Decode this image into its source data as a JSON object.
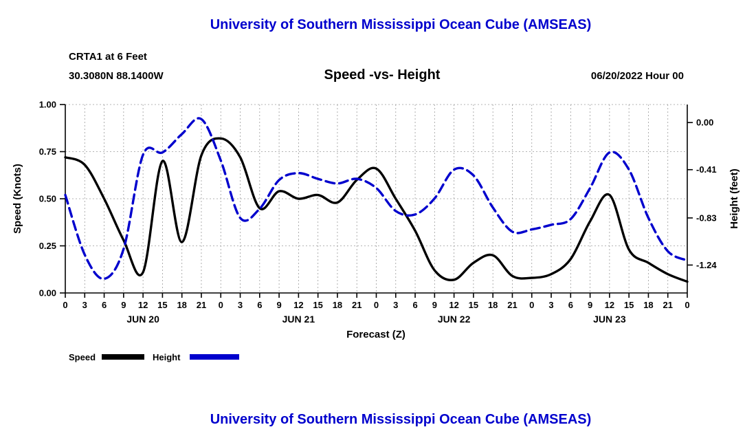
{
  "colors": {
    "accent_blue": "#0000CD",
    "line_black": "#000000",
    "grid_gray": "#9a9a9a"
  },
  "chart_data": {
    "type": "line",
    "title": "University of Southern Mississippi Ocean Cube (AMSEAS)",
    "station": "CRTA1 at 6 Feet",
    "coords": "30.3080N  88.1400W",
    "subtitle": "Speed -vs- Height",
    "run_label": "06/20/2022 Hour 00",
    "xlabel": "Forecast (Z)",
    "ylabel_left": "Speed (Knots)",
    "ylabel_right": "Height (feet)",
    "x_unit": "hours",
    "x_min": 0,
    "x_max": 96,
    "x_tick_step": 3,
    "x_tick_label_mod": 24,
    "x": [
      0,
      3,
      6,
      9,
      12,
      15,
      18,
      21,
      24,
      27,
      30,
      33,
      36,
      39,
      42,
      45,
      48,
      51,
      54,
      57,
      60,
      63,
      66,
      69,
      72,
      75,
      78,
      81,
      84,
      87,
      90,
      93,
      96
    ],
    "day_labels": [
      "JUN 20",
      "JUN 21",
      "JUN 22",
      "JUN 23"
    ],
    "left_axis": {
      "min": 0,
      "max": 1,
      "ticks": [
        {
          "label": "0.00",
          "value": 0.0
        },
        {
          "label": "0.25",
          "value": 0.25
        },
        {
          "label": "0.50",
          "value": 0.5
        },
        {
          "label": "0.75",
          "value": 0.75
        },
        {
          "label": "1.00",
          "value": 1.0
        }
      ]
    },
    "right_axis": {
      "min": -1.483,
      "max": 0.157,
      "ticks": [
        {
          "label": "0.00",
          "value": 0.0
        },
        {
          "label": "-0.41",
          "value": -0.41
        },
        {
          "label": "-0.83",
          "value": -0.83
        },
        {
          "label": "-1.24",
          "value": -1.24
        }
      ]
    },
    "grid": true,
    "legend_position": "bottom-left",
    "series": [
      {
        "name": "Speed",
        "axis": "left",
        "color": "#000000",
        "style": "solid",
        "values": [
          0.72,
          0.68,
          0.5,
          0.28,
          0.11,
          0.7,
          0.27,
          0.73,
          0.82,
          0.72,
          0.45,
          0.54,
          0.5,
          0.52,
          0.48,
          0.6,
          0.66,
          0.5,
          0.33,
          0.12,
          0.07,
          0.16,
          0.2,
          0.09,
          0.08,
          0.1,
          0.18,
          0.38,
          0.52,
          0.23,
          0.16,
          0.1,
          0.06
        ]
      },
      {
        "name": "Height",
        "axis": "right",
        "color": "#0000CD",
        "style": "dashed",
        "values": [
          -0.63,
          -1.15,
          -1.36,
          -1.1,
          -0.28,
          -0.26,
          -0.1,
          0.03,
          -0.33,
          -0.83,
          -0.75,
          -0.5,
          -0.44,
          -0.49,
          -0.53,
          -0.49,
          -0.57,
          -0.77,
          -0.8,
          -0.66,
          -0.41,
          -0.46,
          -0.74,
          -0.95,
          -0.93,
          -0.89,
          -0.84,
          -0.57,
          -0.26,
          -0.41,
          -0.83,
          -1.12,
          -1.2
        ]
      }
    ]
  },
  "chart2": {
    "title": "University of Southern Mississippi Ocean Cube (AMSEAS)"
  }
}
